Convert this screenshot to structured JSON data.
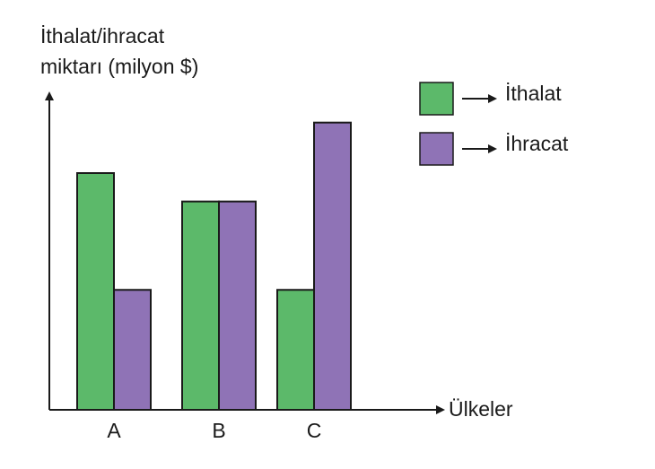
{
  "chart_data": {
    "type": "bar",
    "y_label": [
      "İthalat/ihracat",
      "miktarı (milyon $)"
    ],
    "x_label": "Ülkeler",
    "categories": [
      "A",
      "B",
      "C"
    ],
    "series": [
      {
        "name": "İthalat",
        "color": "#5cb96a",
        "values": [
          7.5,
          6.6,
          3.8
        ]
      },
      {
        "name": "İhracat",
        "color": "#8f73b6",
        "values": [
          3.8,
          6.6,
          9.1
        ]
      }
    ],
    "ylim": [
      0,
      10
    ]
  }
}
